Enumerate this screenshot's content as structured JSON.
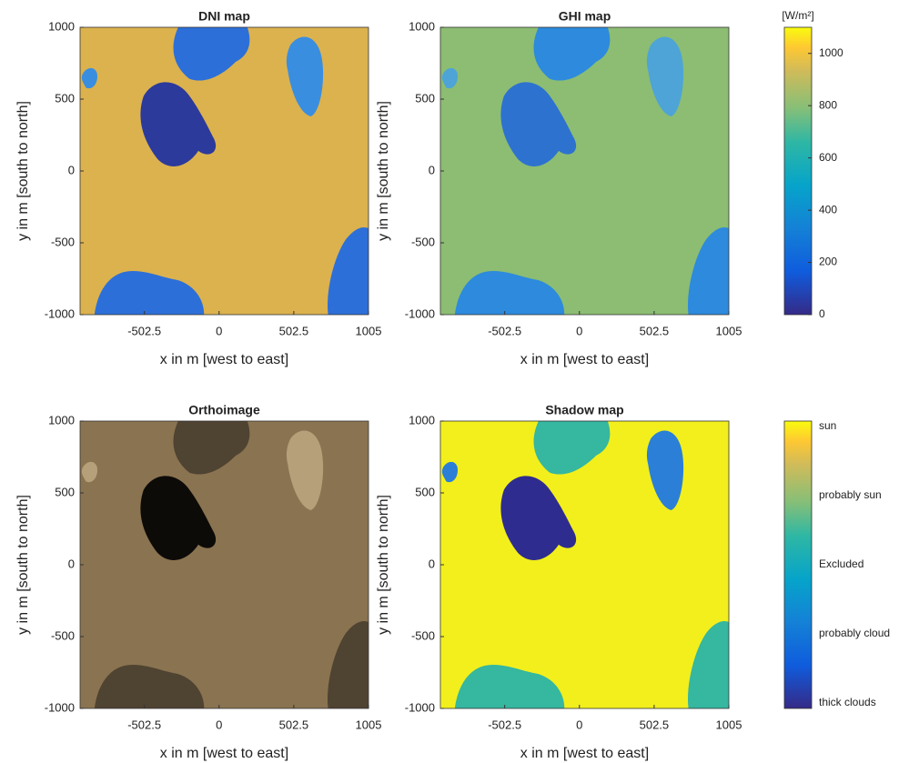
{
  "chart_data": [
    {
      "type": "heatmap",
      "title": "DNI map",
      "xlabel": "x in m [west to east]",
      "ylabel": "y in m [south to north]",
      "xlim": [
        -935,
        1005
      ],
      "xticks": [
        -502.5,
        0,
        502.5,
        1005
      ],
      "ylim": [
        -1000,
        1000
      ],
      "yticks": [
        -1000,
        -500,
        0,
        500,
        1000
      ]
    },
    {
      "type": "heatmap",
      "title": "GHI map",
      "xlabel": "x in m [west to east]",
      "ylabel": "y in m [south to north]",
      "xlim": [
        -935,
        1005
      ],
      "xticks": [
        -502.5,
        0,
        502.5,
        1005
      ],
      "ylim": [
        -1000,
        1000
      ],
      "yticks": [
        -1000,
        -500,
        0,
        500,
        1000
      ]
    },
    {
      "type": "heatmap",
      "title": "Orthoimage",
      "xlabel": "x in m [west to east]",
      "ylabel": "y in m [south to north]",
      "xlim": [
        -935,
        1005
      ],
      "xticks": [
        -502.5,
        0,
        502.5,
        1005
      ],
      "ylim": [
        -1000,
        1000
      ],
      "yticks": [
        -1000,
        -500,
        0,
        500,
        1000
      ]
    },
    {
      "type": "heatmap",
      "title": "Shadow map",
      "xlabel": "x in m [west to east]",
      "ylabel": "y in m [south to north]",
      "xlim": [
        -935,
        1005
      ],
      "xticks": [
        -502.5,
        0,
        502.5,
        1005
      ],
      "ylim": [
        -1000,
        1000
      ],
      "yticks": [
        -1000,
        -500,
        0,
        500,
        1000
      ]
    },
    {
      "type": "colorbar",
      "label": "[W/m²]",
      "ylim": [
        0,
        1100
      ],
      "yticks": [
        0,
        200,
        400,
        600,
        800,
        1000
      ]
    },
    {
      "type": "colorbar",
      "categories": [
        "thick clouds",
        "probably cloud",
        "Excluded",
        "probably sun",
        "sun"
      ]
    }
  ]
}
